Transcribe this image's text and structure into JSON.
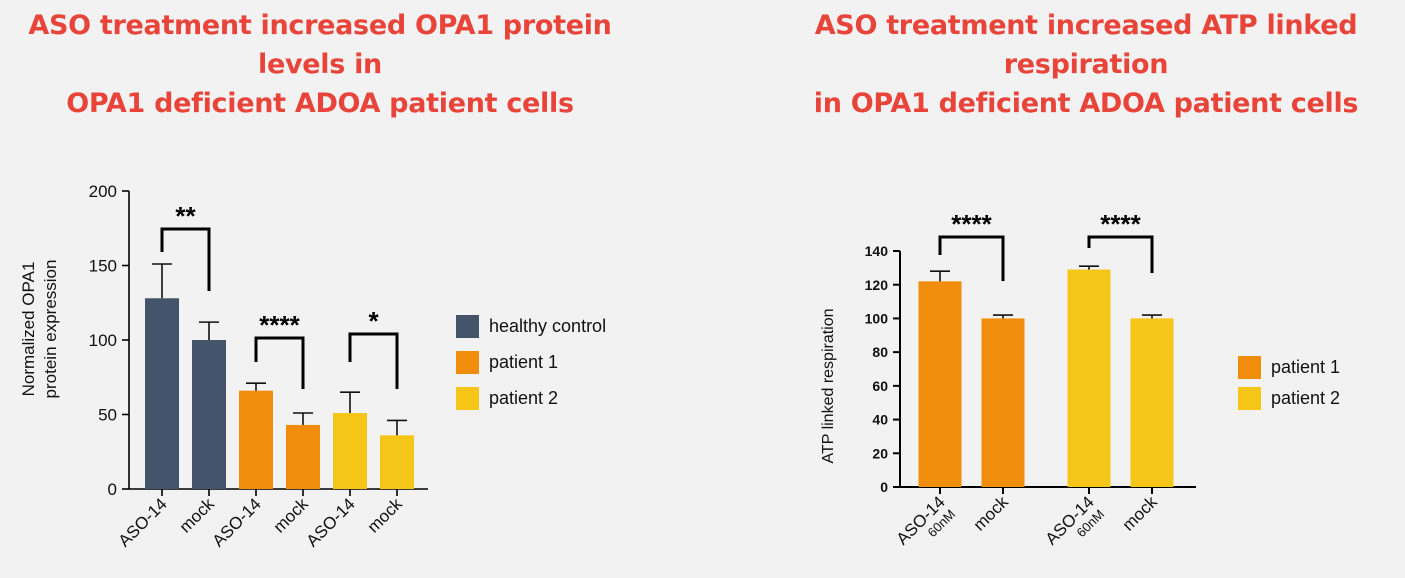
{
  "titles": {
    "left_line1": "ASO treatment increased OPA1 protein levels in",
    "left_line2": "OPA1 deficient ADOA patient cells",
    "right_line1": "ASO treatment increased ATP linked respiration",
    "right_line2": "in OPA1 deficient ADOA patient cells"
  },
  "colors": {
    "healthy_control": "#44546a",
    "patient_1": "#f08d0c",
    "patient_2": "#f5c518",
    "title": "#e8443a",
    "axis": "#000000"
  },
  "chart_data": [
    {
      "type": "bar",
      "title": "ASO treatment increased OPA1 protein levels in OPA1 deficient ADOA patient cells",
      "ylabel_line1": "Normalized OPA1",
      "ylabel_line2": "protein expression",
      "xlabel": "",
      "ylim": [
        0,
        200
      ],
      "yticks": [
        0,
        50,
        100,
        150,
        200
      ],
      "categories": [
        "ASO-14",
        "mock",
        "ASO-14",
        "mock",
        "ASO-14",
        "mock"
      ],
      "values": [
        128,
        100,
        66,
        43,
        51,
        36
      ],
      "errors": [
        23,
        12,
        5,
        8,
        14,
        10
      ],
      "groups": [
        "healthy control",
        "healthy control",
        "patient 1",
        "patient 1",
        "patient 2",
        "patient 2"
      ],
      "legend": [
        "healthy control",
        "patient 1",
        "patient 2"
      ],
      "legend_position": "right",
      "significance": [
        {
          "from": 0,
          "to": 1,
          "label": "**"
        },
        {
          "from": 2,
          "to": 3,
          "label": "****"
        },
        {
          "from": 4,
          "to": 5,
          "label": "*"
        }
      ]
    },
    {
      "type": "bar",
      "title": "ASO treatment increased ATP linked respiration in OPA1 deficient ADOA patient cells",
      "ylabel": "ATP linked respiration",
      "xlabel": "",
      "ylim": [
        0,
        140
      ],
      "yticks": [
        0,
        20,
        40,
        60,
        80,
        100,
        120,
        140
      ],
      "categories": [
        "ASO-14",
        "mock",
        "ASO-14",
        "mock"
      ],
      "category_sublabels": [
        "60nM",
        "",
        "60nM",
        ""
      ],
      "values": [
        122,
        100,
        129,
        100
      ],
      "errors": [
        6,
        2,
        2,
        2
      ],
      "groups": [
        "patient 1",
        "patient 1",
        "patient 2",
        "patient 2"
      ],
      "legend": [
        "patient 1",
        "patient 2"
      ],
      "legend_position": "right",
      "significance": [
        {
          "from": 0,
          "to": 1,
          "label": "****"
        },
        {
          "from": 2,
          "to": 3,
          "label": "****"
        }
      ]
    }
  ]
}
